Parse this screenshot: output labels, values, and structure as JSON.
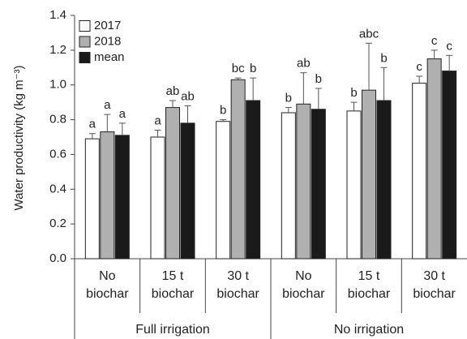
{
  "chart_data": {
    "type": "bar",
    "y_label": "Water productivity (kg m⁻³)",
    "categories": [
      "No biochar",
      "15 t biochar",
      "30 t biochar",
      "No biochar",
      "15 t biochar",
      "30 t biochar"
    ],
    "groups": [
      "Full irrigation",
      "No irrigation"
    ],
    "series": [
      {
        "name": "2017",
        "color": "#ffffff",
        "values": [
          0.69,
          0.7,
          0.79,
          0.84,
          0.85,
          1.01
        ],
        "errors": [
          0.03,
          0.04,
          0.01,
          0.03,
          0.05,
          0.04
        ],
        "letters": [
          "a",
          "a",
          "b",
          "b",
          "b",
          "c"
        ]
      },
      {
        "name": "2018",
        "color": "#b0b0b0",
        "values": [
          0.73,
          0.87,
          1.03,
          0.89,
          0.97,
          1.15
        ],
        "errors": [
          0.1,
          0.04,
          0.01,
          0.18,
          0.27,
          0.05
        ],
        "letters": [
          "a",
          "ab",
          "bc",
          "ab",
          "abc",
          "c"
        ]
      },
      {
        "name": "mean",
        "color": "#1a1a1a",
        "values": [
          0.71,
          0.78,
          0.91,
          0.86,
          0.91,
          1.08
        ],
        "errors": [
          0.07,
          0.1,
          0.13,
          0.12,
          0.19,
          0.09
        ],
        "letters": [
          "a",
          "ab",
          "b",
          "b",
          "b",
          "c"
        ]
      }
    ],
    "ylim": [
      0,
      1.4
    ],
    "yticks": [
      {
        "value": 0,
        "label": "0.0"
      },
      0.2,
      0.4,
      0.6,
      0.8,
      {
        "value": 1,
        "label": "1.0"
      },
      1.2,
      1.4
    ],
    "legend": "upper left"
  }
}
